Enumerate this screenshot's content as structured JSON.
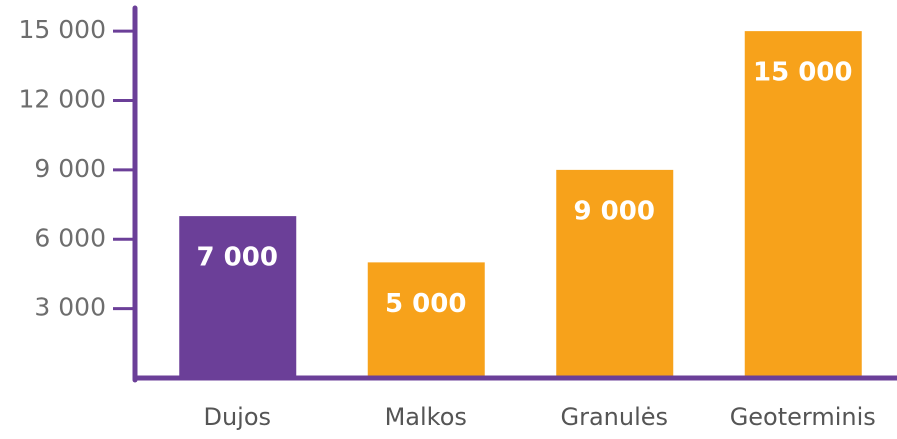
{
  "chart_data": {
    "type": "bar",
    "categories": [
      "Dujos",
      "Malkos",
      "Granulės",
      "Geoterminis"
    ],
    "values": [
      7000,
      5000,
      9000,
      15000
    ],
    "value_labels": [
      "7 000",
      "5 000",
      "9 000",
      "15 000"
    ],
    "colors": [
      "#6b3f98",
      "#f7a21b",
      "#f7a21b",
      "#f7a21b"
    ],
    "ylim": [
      0,
      16000
    ],
    "yticks": [
      {
        "value": 3000,
        "label": "3 000"
      },
      {
        "value": 6000,
        "label": "6 000"
      },
      {
        "value": 9000,
        "label": "9 000"
      },
      {
        "value": 12000,
        "label": "12 000"
      },
      {
        "value": 15000,
        "label": "15 000"
      }
    ],
    "axis_color": "#6b3f98"
  }
}
